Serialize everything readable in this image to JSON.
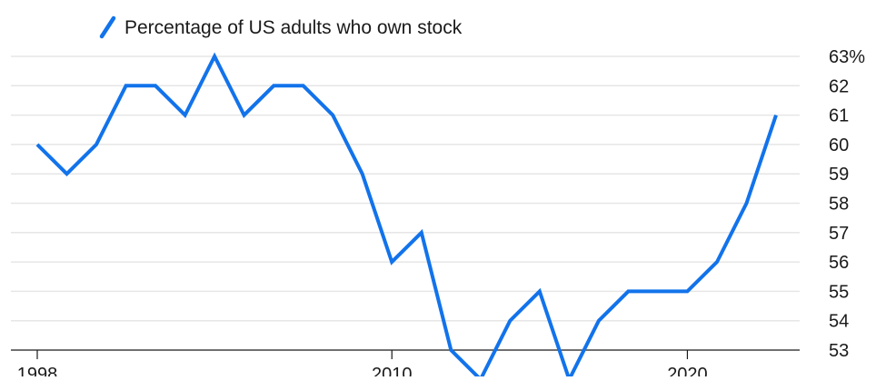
{
  "chart_data": {
    "type": "line",
    "legend_position": "top-left",
    "grid": true,
    "x": [
      1998,
      1999,
      2000,
      2001,
      2002,
      2003,
      2004,
      2005,
      2006,
      2007,
      2008,
      2009,
      2010,
      2011,
      2012,
      2013,
      2014,
      2015,
      2016,
      2017,
      2018,
      2019,
      2020,
      2021,
      2022,
      2023
    ],
    "series": [
      {
        "name": "Percentage of US adults who own stock",
        "color": "#1273eb",
        "values": [
          60,
          59,
          60,
          62,
          62,
          61,
          63,
          61,
          62,
          62,
          61,
          59,
          56,
          57,
          53,
          52,
          54,
          55,
          52,
          54,
          55,
          55,
          55,
          56,
          58,
          61
        ]
      }
    ],
    "xlim": [
      1998,
      2023
    ],
    "ylim": [
      53,
      63
    ],
    "x_ticks": [
      {
        "value": 1998,
        "label": "1998"
      },
      {
        "value": 2010,
        "label": "2010"
      },
      {
        "value": 2020,
        "label": "2020"
      }
    ],
    "y_ticks": [
      {
        "value": 63,
        "label": "63%"
      },
      {
        "value": 62,
        "label": "62"
      },
      {
        "value": 61,
        "label": "61"
      },
      {
        "value": 60,
        "label": "60"
      },
      {
        "value": 59,
        "label": "59"
      },
      {
        "value": 58,
        "label": "58"
      },
      {
        "value": 57,
        "label": "57"
      },
      {
        "value": 56,
        "label": "56"
      },
      {
        "value": 55,
        "label": "55"
      },
      {
        "value": 54,
        "label": "54"
      },
      {
        "value": 53,
        "label": "53"
      }
    ]
  }
}
